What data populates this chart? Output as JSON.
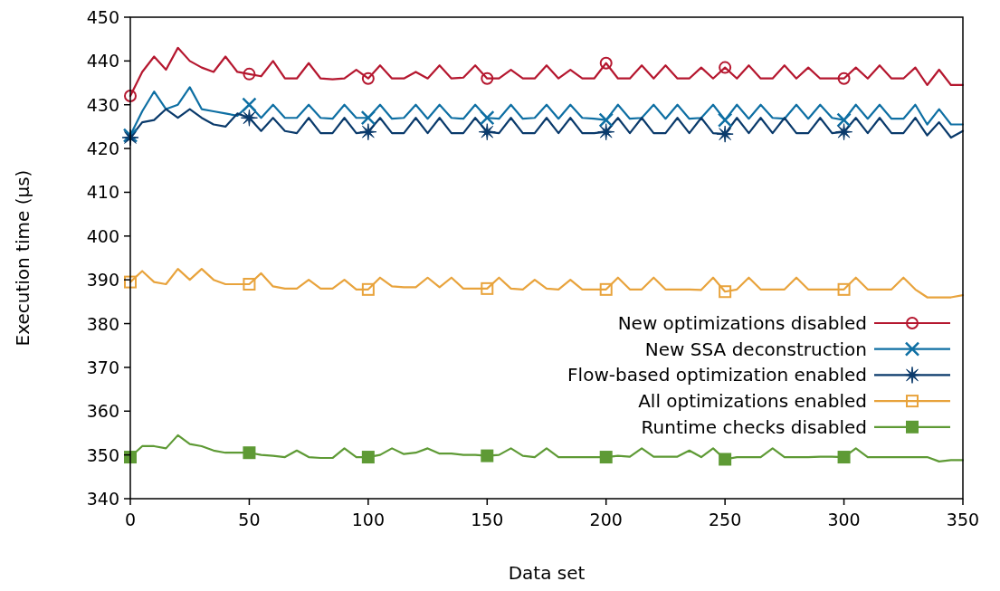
{
  "chart_data": {
    "type": "line",
    "xlabel": "Data set",
    "ylabel": "Execution time (µs)",
    "x": [
      0,
      5,
      10,
      15,
      20,
      25,
      30,
      35,
      40,
      45,
      50,
      55,
      60,
      65,
      70,
      75,
      80,
      85,
      90,
      95,
      100,
      105,
      110,
      115,
      120,
      125,
      130,
      135,
      140,
      145,
      150,
      155,
      160,
      165,
      170,
      175,
      180,
      185,
      190,
      195,
      200,
      205,
      210,
      215,
      220,
      225,
      230,
      235,
      240,
      245,
      250,
      255,
      260,
      265,
      270,
      275,
      280,
      285,
      290,
      295,
      300,
      305,
      310,
      315,
      320,
      325,
      330,
      335,
      340,
      345,
      350
    ],
    "xlim": [
      0,
      350
    ],
    "xticks": [
      0,
      50,
      100,
      150,
      200,
      250,
      300,
      350
    ],
    "ylim": [
      340,
      450
    ],
    "yticks": [
      340,
      350,
      360,
      370,
      380,
      390,
      400,
      410,
      420,
      430,
      440,
      450
    ],
    "legend": "bottom right",
    "grid": false,
    "series": [
      {
        "name": "New optimizations disabled",
        "color": "#b5172f",
        "values": [
          432,
          437.5,
          441,
          438,
          443,
          440,
          438.5,
          437.5,
          441,
          437.5,
          437,
          436.5,
          440,
          436,
          436,
          439.5,
          436,
          435.8,
          436,
          438,
          436,
          439,
          436,
          436,
          437.5,
          436,
          439,
          436,
          436.2,
          439,
          436,
          436,
          438,
          436,
          436,
          439,
          436,
          438,
          436,
          436,
          439.5,
          436,
          436,
          439,
          436,
          439,
          436,
          436,
          438.5,
          436,
          438.5,
          436,
          439,
          436,
          436,
          439,
          436,
          438.5,
          436,
          436,
          436,
          438.5,
          436,
          439,
          436,
          436,
          438.5,
          434.5,
          438,
          434.5,
          434.5
        ]
      },
      {
        "name": "New SSA deconstruction",
        "color": "#0e6fa3",
        "values": [
          423,
          428.5,
          433,
          429,
          430,
          434,
          429,
          428.5,
          428,
          427.5,
          430,
          427,
          430,
          427,
          427,
          430,
          427,
          426.8,
          430,
          427,
          427,
          430,
          426.8,
          427,
          430,
          426.8,
          430,
          427,
          426.8,
          430,
          427,
          426.8,
          430,
          426.8,
          427,
          430,
          426.8,
          430,
          427,
          426.8,
          426.5,
          430,
          426.8,
          427,
          430,
          426.8,
          430,
          426.8,
          427,
          430,
          426.5,
          430,
          426.8,
          430,
          427,
          426.8,
          430,
          426.8,
          430,
          427,
          426.5,
          430,
          426.8,
          430,
          426.8,
          426.8,
          430,
          425.5,
          429,
          425.5,
          425.5
        ]
      },
      {
        "name": "Flow-based optimization enabled",
        "color": "#0a3a6b",
        "values": [
          422.5,
          426,
          426.5,
          429,
          427,
          429,
          427,
          425.5,
          425,
          428,
          427,
          424,
          427,
          424,
          423.5,
          427,
          423.5,
          423.5,
          427,
          423.5,
          423.8,
          427,
          423.5,
          423.5,
          427,
          423.5,
          427,
          423.5,
          423.5,
          427,
          423.8,
          423.5,
          427,
          423.5,
          423.5,
          427,
          423.5,
          427,
          423.5,
          423.5,
          423.8,
          427,
          423.5,
          427,
          423.5,
          423.5,
          427,
          423.5,
          427,
          423.5,
          423.3,
          427,
          423.5,
          427,
          423.5,
          427,
          423.5,
          423.5,
          427,
          423.5,
          423.8,
          427,
          423.5,
          427,
          423.5,
          423.5,
          427,
          423,
          426,
          422.5,
          424
        ]
      },
      {
        "name": "All optimizations enabled",
        "color": "#e8a33c",
        "values": [
          389.5,
          392,
          389.5,
          389,
          392.5,
          390,
          392.5,
          390,
          389,
          389,
          389,
          391.5,
          388.5,
          388,
          388,
          390,
          388,
          388,
          390,
          387.8,
          387.8,
          390.5,
          388.5,
          388.3,
          388.3,
          390.5,
          388.3,
          390.5,
          388,
          388,
          388,
          390.5,
          388,
          387.8,
          390,
          388,
          387.8,
          390,
          387.8,
          387.8,
          387.8,
          390.5,
          387.8,
          387.8,
          390.5,
          387.8,
          387.8,
          387.8,
          387.7,
          390.5,
          387.3,
          387.8,
          390.5,
          387.8,
          387.8,
          387.8,
          390.5,
          387.8,
          387.8,
          387.8,
          387.8,
          390.5,
          387.8,
          387.8,
          387.8,
          390.5,
          387.8,
          386,
          386,
          386,
          386.5
        ]
      },
      {
        "name": "Runtime checks disabled",
        "color": "#5e9a35",
        "values": [
          349.5,
          352,
          352,
          351.5,
          354.5,
          352.5,
          352,
          351,
          350.5,
          350.5,
          350.5,
          350,
          349.8,
          349.5,
          351,
          349.5,
          349.3,
          349.3,
          351.5,
          349.5,
          349.5,
          350,
          351.5,
          350.2,
          350.5,
          351.5,
          350.3,
          350.3,
          350,
          350,
          349.8,
          350,
          351.5,
          349.8,
          349.5,
          351.5,
          349.5,
          349.5,
          349.5,
          349.5,
          349.5,
          349.8,
          349.6,
          351.5,
          349.6,
          349.6,
          349.6,
          351,
          349.5,
          351.5,
          349,
          349.5,
          349.5,
          349.5,
          351.5,
          349.5,
          349.5,
          349.5,
          349.6,
          349.6,
          349.5,
          351.5,
          349.5,
          349.5,
          349.5,
          349.5,
          349.5,
          349.5,
          348.5,
          348.8,
          348.8
        ]
      },
      {
        "type": "scatter",
        "color": "#b5172f",
        "marker": "circle",
        "x": [
          0,
          50,
          100,
          150,
          200,
          250,
          300
        ],
        "values": [
          432,
          437,
          436,
          436,
          439.5,
          438.5,
          436
        ]
      },
      {
        "type": "scatter",
        "color": "#0e6fa3",
        "marker": "cross",
        "x": [
          0,
          50,
          100,
          150,
          200,
          250,
          300
        ],
        "values": [
          423,
          430,
          427,
          427,
          426.5,
          426.5,
          426.5
        ]
      },
      {
        "type": "scatter",
        "color": "#0a3a6b",
        "marker": "star",
        "x": [
          0,
          50,
          100,
          150,
          200,
          250,
          300
        ],
        "values": [
          422.5,
          427,
          423.8,
          423.8,
          423.8,
          423.3,
          423.8
        ]
      },
      {
        "type": "scatter",
        "color": "#e8a33c",
        "marker": "square",
        "x": [
          0,
          50,
          100,
          150,
          200,
          250,
          300
        ],
        "values": [
          389.5,
          389,
          387.8,
          388,
          387.8,
          387.3,
          387.8
        ]
      },
      {
        "type": "scatter",
        "color": "#5e9a35",
        "marker": "square",
        "x": [
          0,
          50,
          100,
          150,
          200,
          250,
          300
        ],
        "values": [
          349.5,
          350.5,
          349.5,
          349.8,
          349.5,
          349,
          349.5
        ]
      }
    ]
  }
}
